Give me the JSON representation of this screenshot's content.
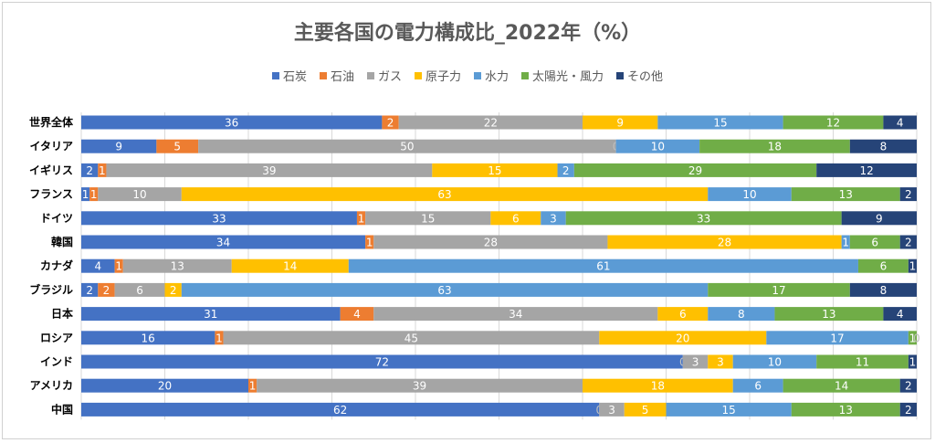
{
  "chart_data": {
    "type": "bar",
    "orientation": "horizontal",
    "stacked": true,
    "percent": true,
    "title": "主要各国の電力構成比_2022年（%）",
    "legend_position": "top",
    "grid": true,
    "xlim": [
      0,
      100
    ],
    "categories": [
      "世界全体",
      "イタリア",
      "イギリス",
      "フランス",
      "ドイツ",
      "韓国",
      "カナダ",
      "ブラジル",
      "日本",
      "ロシア",
      "インド",
      "アメリカ",
      "中国"
    ],
    "series": [
      {
        "name": "石炭",
        "color": "#4472c4",
        "label_color": "#ffffff",
        "values": [
          36,
          9,
          2,
          1,
          33,
          34,
          4,
          2,
          31,
          16,
          72,
          20,
          62
        ]
      },
      {
        "name": "石油",
        "color": "#ed7d31",
        "label_color": "#ffffff",
        "values": [
          2,
          5,
          1,
          1,
          1,
          1,
          1,
          2,
          4,
          1,
          0,
          1,
          0
        ]
      },
      {
        "name": "ガス",
        "color": "#a5a5a5",
        "label_color": "#ffffff",
        "values": [
          22,
          50,
          39,
          10,
          15,
          28,
          13,
          6,
          34,
          45,
          3,
          39,
          3
        ]
      },
      {
        "name": "原子力",
        "color": "#ffc000",
        "label_color": "#ffffff",
        "values": [
          9,
          0,
          15,
          63,
          6,
          28,
          14,
          2,
          6,
          20,
          3,
          18,
          5
        ]
      },
      {
        "name": "水力",
        "color": "#5b9bd5",
        "label_color": "#ffffff",
        "values": [
          15,
          10,
          2,
          10,
          3,
          1,
          61,
          63,
          8,
          17,
          10,
          6,
          15
        ]
      },
      {
        "name": "太陽光・風力",
        "color": "#70ad47",
        "label_color": "#ffffff",
        "values": [
          12,
          18,
          29,
          13,
          33,
          6,
          6,
          17,
          13,
          1,
          11,
          14,
          13
        ]
      },
      {
        "name": "その他",
        "color": "#264478",
        "label_color": "#ffffff",
        "values": [
          4,
          8,
          12,
          2,
          9,
          2,
          1,
          8,
          4,
          0,
          1,
          2,
          2
        ]
      }
    ]
  }
}
